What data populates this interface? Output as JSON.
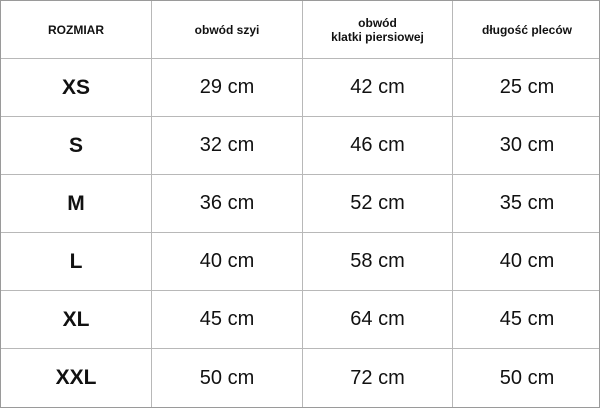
{
  "table": {
    "header": [
      "ROZMIAR",
      "obwód szyi",
      "obwód\nklatki piersiowej",
      "długość pleców"
    ],
    "rows": [
      [
        "XS",
        "29 cm",
        "42 cm",
        "25 cm"
      ],
      [
        "S",
        "32 cm",
        "46 cm",
        "30 cm"
      ],
      [
        "M",
        "36 cm",
        "52 cm",
        "35 cm"
      ],
      [
        "L",
        "40 cm",
        "58 cm",
        "40 cm"
      ],
      [
        "XL",
        "45 cm",
        "64 cm",
        "45 cm"
      ],
      [
        "XXL",
        "50 cm",
        "72 cm",
        "50 cm"
      ]
    ]
  }
}
